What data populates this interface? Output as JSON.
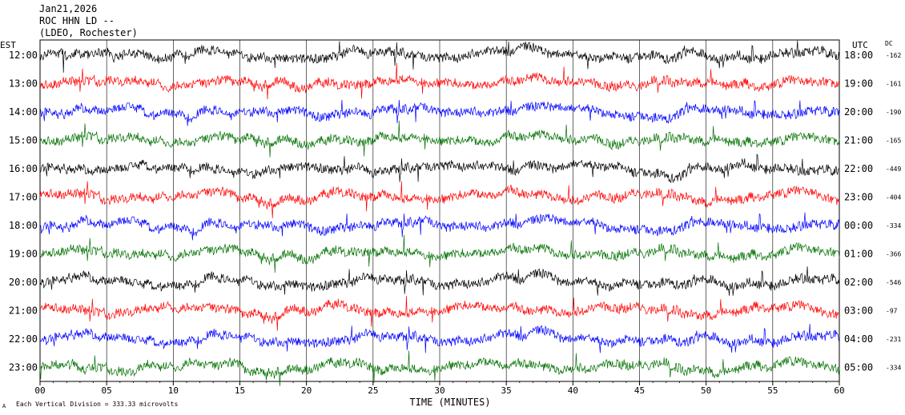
{
  "header": {
    "date": "Jan21,2026",
    "station": "ROC HHN LD --",
    "network": "(LDEO, Rochester)"
  },
  "labels": {
    "left_timezone": "EST",
    "right_timezone": "UTC",
    "dc_header": "DC",
    "xlabel": "TIME (MINUTES)",
    "scale_note": "Each Vertical Division =  333.33 microvolts",
    "corner_mark": "A"
  },
  "colors": {
    "cycle": [
      "#000000",
      "#ff0000",
      "#0000ff",
      "#007000"
    ],
    "grid": "#000000"
  },
  "chart_data": {
    "type": "line",
    "title": "ROC HHN LD --",
    "xlabel": "TIME (MINUTES)",
    "xlim": [
      0,
      60
    ],
    "xticks": [
      "00",
      "05",
      "10",
      "15",
      "20",
      "25",
      "30",
      "35",
      "40",
      "45",
      "50",
      "55",
      "60"
    ],
    "grid": "vertical lines every 5 minutes",
    "rows": [
      {
        "est": "12:00",
        "utc": "18:00",
        "dc": "-162",
        "color": "#000000"
      },
      {
        "est": "13:00",
        "utc": "19:00",
        "dc": "-161",
        "color": "#ff0000"
      },
      {
        "est": "14:00",
        "utc": "20:00",
        "dc": "-190",
        "color": "#0000ff"
      },
      {
        "est": "15:00",
        "utc": "21:00",
        "dc": "-165",
        "color": "#007000"
      },
      {
        "est": "16:00",
        "utc": "22:00",
        "dc": "-449",
        "color": "#000000"
      },
      {
        "est": "17:00",
        "utc": "23:00",
        "dc": "-404",
        "color": "#ff0000"
      },
      {
        "est": "18:00",
        "utc": "00:00",
        "dc": "-334",
        "color": "#0000ff"
      },
      {
        "est": "19:00",
        "utc": "01:00",
        "dc": "-366",
        "color": "#007000"
      },
      {
        "est": "20:00",
        "utc": "02:00",
        "dc": "-546",
        "color": "#000000"
      },
      {
        "est": "21:00",
        "utc": "03:00",
        "dc": "-97",
        "color": "#ff0000"
      },
      {
        "est": "22:00",
        "utc": "04:00",
        "dc": "-231",
        "color": "#0000ff"
      },
      {
        "est": "23:00",
        "utc": "05:00",
        "dc": "-334",
        "color": "#007000"
      }
    ]
  }
}
